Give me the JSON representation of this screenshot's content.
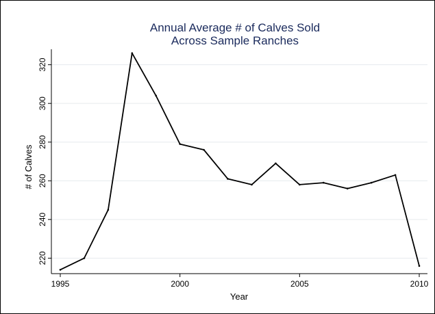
{
  "chart_data": {
    "type": "line",
    "title": [
      "Annual Average # of Calves Sold",
      "Across Sample Ranches"
    ],
    "xlabel": "Year",
    "ylabel": "# of Calves",
    "xlim": [
      1995,
      2010
    ],
    "ylim": [
      212,
      328
    ],
    "xticks": [
      1995,
      2000,
      2005,
      2010
    ],
    "yticks": [
      220,
      240,
      260,
      280,
      300,
      320
    ],
    "grid": true,
    "series": [
      {
        "x": [
          1995,
          1996,
          1997,
          1998,
          1999,
          2000,
          2001,
          2002,
          2003,
          2004,
          2005,
          2006,
          2007,
          2008,
          2009,
          2010
        ],
        "values": [
          214,
          220,
          245,
          326,
          304,
          279,
          276,
          261,
          258,
          269,
          258,
          259,
          256,
          259,
          263,
          216
        ]
      }
    ],
    "colors": {
      "line": "#000000",
      "grid": "#e6eaee",
      "title": "#1a2a5c"
    }
  }
}
